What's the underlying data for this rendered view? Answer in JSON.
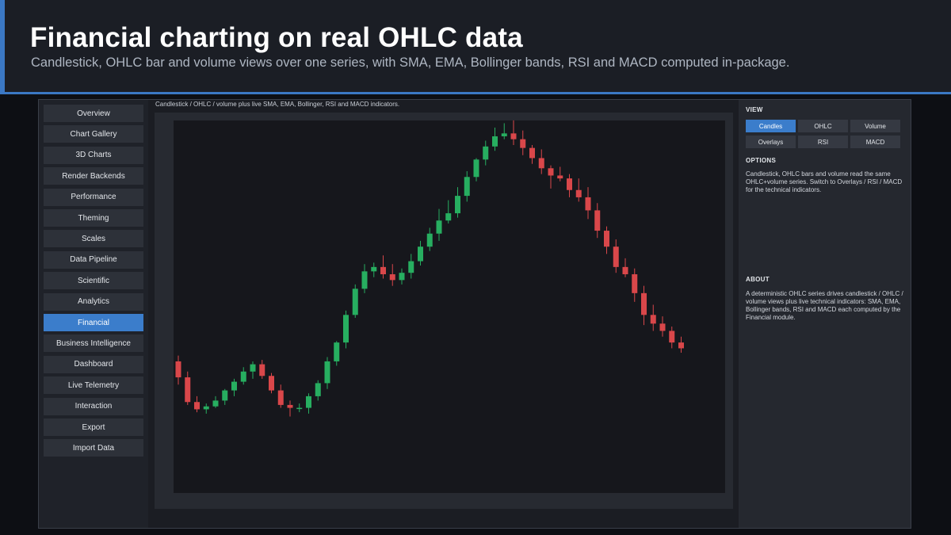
{
  "header": {
    "title": "Financial charting on real OHLC data",
    "subtitle": "Candlestick, OHLC bar and volume views over one series, with SMA, EMA, Bollinger bands, RSI and MACD computed in-package."
  },
  "sidebar": {
    "items": [
      {
        "label": "Overview"
      },
      {
        "label": "Chart Gallery"
      },
      {
        "label": "3D Charts"
      },
      {
        "label": "Render Backends"
      },
      {
        "label": "Performance"
      },
      {
        "label": "Theming"
      },
      {
        "label": "Scales"
      },
      {
        "label": "Data Pipeline"
      },
      {
        "label": "Scientific"
      },
      {
        "label": "Analytics"
      },
      {
        "label": "Financial",
        "active": true
      },
      {
        "label": "Business Intelligence"
      },
      {
        "label": "Dashboard"
      },
      {
        "label": "Live Telemetry"
      },
      {
        "label": "Interaction"
      },
      {
        "label": "Export"
      },
      {
        "label": "Import Data"
      }
    ]
  },
  "main": {
    "caption": "Candlestick / OHLC / volume plus live SMA, EMA, Bollinger, RSI and MACD indicators."
  },
  "panel": {
    "view_heading": "VIEW",
    "view_buttons": [
      {
        "label": "Candles",
        "active": true
      },
      {
        "label": "OHLC"
      },
      {
        "label": "Volume"
      },
      {
        "label": "Overlays"
      },
      {
        "label": "RSI"
      },
      {
        "label": "MACD"
      }
    ],
    "options_heading": "OPTIONS",
    "options_text": "Candlestick, OHLC bars and volume read the same OHLC+volume series. Switch to Overlays / RSI / MACD for the technical indicators.",
    "about_heading": "ABOUT",
    "about_text": "A deterministic OHLC series drives candlestick / OHLC / volume views plus live technical indicators: SMA, EMA, Bollinger bands, RSI and MACD  each computed by the Financial module."
  },
  "colors": {
    "up": "#27ae60",
    "down": "#d9474a",
    "accent": "#3b7dcb"
  },
  "chart_data": {
    "type": "candlestick",
    "ohlc": [
      [
        83,
        72,
        87,
        67
      ],
      [
        72,
        55,
        76,
        53
      ],
      [
        55,
        50,
        59,
        48
      ],
      [
        50,
        52,
        54,
        47
      ],
      [
        52,
        56,
        59,
        51
      ],
      [
        56,
        63,
        64,
        53
      ],
      [
        63,
        69,
        71,
        59
      ],
      [
        69,
        76,
        79,
        67
      ],
      [
        76,
        81,
        83,
        71
      ],
      [
        81,
        73,
        84,
        71
      ],
      [
        73,
        63,
        75,
        61
      ],
      [
        63,
        53,
        67,
        51
      ],
      [
        53,
        51,
        56,
        45
      ],
      [
        51,
        51,
        54,
        48
      ],
      [
        51,
        59,
        61,
        47
      ],
      [
        59,
        68,
        70,
        56
      ],
      [
        68,
        83,
        86,
        64
      ],
      [
        83,
        96,
        97,
        80
      ],
      [
        96,
        115,
        118,
        92
      ],
      [
        115,
        133,
        136,
        113
      ],
      [
        133,
        145,
        150,
        130
      ],
      [
        145,
        148,
        151,
        141
      ],
      [
        148,
        143,
        156,
        140
      ],
      [
        143,
        139,
        150,
        135
      ],
      [
        139,
        144,
        147,
        136
      ],
      [
        144,
        152,
        157,
        140
      ],
      [
        152,
        162,
        166,
        149
      ],
      [
        162,
        171,
        175,
        159
      ],
      [
        171,
        180,
        188,
        166
      ],
      [
        180,
        185,
        194,
        178
      ],
      [
        185,
        197,
        203,
        182
      ],
      [
        197,
        210,
        214,
        193
      ],
      [
        210,
        222,
        223,
        207
      ],
      [
        222,
        231,
        235,
        218
      ],
      [
        231,
        238,
        244,
        228
      ],
      [
        238,
        240,
        247,
        236
      ],
      [
        240,
        236,
        249,
        232
      ],
      [
        236,
        230,
        242,
        225
      ],
      [
        230,
        223,
        232,
        219
      ],
      [
        223,
        216,
        229,
        212
      ],
      [
        216,
        211,
        218,
        202
      ],
      [
        211,
        209,
        217,
        207
      ],
      [
        209,
        201,
        212,
        196
      ],
      [
        201,
        196,
        209,
        193
      ],
      [
        196,
        187,
        203,
        181
      ],
      [
        187,
        173,
        192,
        168
      ],
      [
        173,
        162,
        176,
        157
      ],
      [
        162,
        148,
        167,
        144
      ],
      [
        148,
        143,
        154,
        141
      ],
      [
        143,
        130,
        147,
        124
      ],
      [
        130,
        115,
        135,
        108
      ],
      [
        115,
        109,
        122,
        104
      ],
      [
        109,
        104,
        114,
        100
      ],
      [
        104,
        96,
        107,
        92
      ],
      [
        96,
        92,
        100,
        89
      ]
    ],
    "xlabel": "",
    "ylabel": ""
  }
}
